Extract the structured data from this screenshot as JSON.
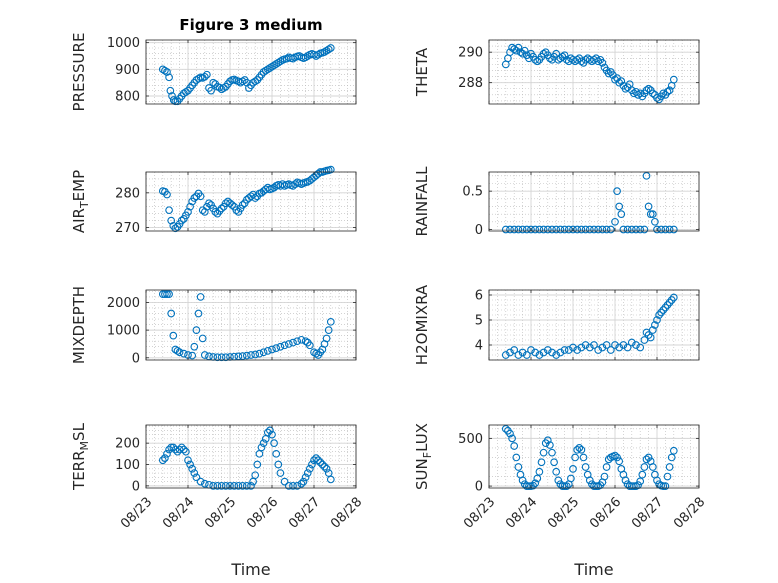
{
  "figure": {
    "title": "Figure 3 medium",
    "marker_color": "#0072BD"
  },
  "chart_data": [
    {
      "type": "scatter",
      "ylabel": "PRESSURE",
      "ylim": [
        770,
        1010
      ],
      "yticks": [
        800,
        900,
        1000
      ],
      "xlim": [
        0,
        5
      ],
      "grid": true,
      "minor_grid": true,
      "x": [
        0.4,
        0.45,
        0.5,
        0.55,
        0.58,
        0.62,
        0.66,
        0.7,
        0.75,
        0.8,
        0.85,
        0.9,
        0.95,
        1.0,
        1.05,
        1.1,
        1.15,
        1.2,
        1.25,
        1.3,
        1.35,
        1.4,
        1.45,
        1.5,
        1.55,
        1.6,
        1.65,
        1.7,
        1.75,
        1.8,
        1.85,
        1.9,
        1.95,
        2.0,
        2.05,
        2.1,
        2.15,
        2.2,
        2.25,
        2.3,
        2.35,
        2.4,
        2.45,
        2.5,
        2.55,
        2.6,
        2.65,
        2.7,
        2.75,
        2.8,
        2.85,
        2.9,
        2.95,
        3.0,
        3.05,
        3.1,
        3.15,
        3.2,
        3.25,
        3.3,
        3.35,
        3.4,
        3.45,
        3.5,
        3.55,
        3.6,
        3.65,
        3.7,
        3.75,
        3.8,
        3.85,
        3.9,
        3.95,
        4.0,
        4.05,
        4.1,
        4.15,
        4.2,
        4.25,
        4.3,
        4.35,
        4.4
      ],
      "y": [
        900,
        895,
        890,
        870,
        820,
        800,
        785,
        780,
        780,
        790,
        800,
        810,
        815,
        820,
        830,
        840,
        850,
        860,
        865,
        870,
        868,
        872,
        880,
        830,
        820,
        850,
        845,
        835,
        832,
        825,
        830,
        835,
        845,
        855,
        860,
        862,
        858,
        855,
        850,
        855,
        860,
        850,
        830,
        840,
        850,
        855,
        860,
        870,
        880,
        890,
        895,
        900,
        905,
        910,
        915,
        920,
        925,
        930,
        935,
        938,
        940,
        945,
        942,
        940,
        945,
        948,
        950,
        945,
        942,
        945,
        950,
        955,
        958,
        955,
        950,
        955,
        960,
        962,
        965,
        970,
        975,
        980
      ]
    },
    {
      "type": "scatter",
      "ylabel": "THETA",
      "ylim": [
        286.6,
        290.8
      ],
      "yticks": [
        288,
        290
      ],
      "xlim": [
        0,
        5
      ],
      "grid": true,
      "minor_grid": true,
      "x": [
        0.4,
        0.45,
        0.5,
        0.55,
        0.6,
        0.65,
        0.7,
        0.75,
        0.8,
        0.85,
        0.9,
        0.95,
        1.0,
        1.05,
        1.1,
        1.15,
        1.2,
        1.25,
        1.3,
        1.35,
        1.4,
        1.45,
        1.5,
        1.55,
        1.6,
        1.65,
        1.7,
        1.75,
        1.8,
        1.85,
        1.9,
        1.95,
        2.0,
        2.05,
        2.1,
        2.15,
        2.2,
        2.25,
        2.3,
        2.35,
        2.4,
        2.45,
        2.5,
        2.55,
        2.6,
        2.65,
        2.7,
        2.75,
        2.8,
        2.85,
        2.9,
        2.95,
        3.0,
        3.05,
        3.1,
        3.15,
        3.2,
        3.25,
        3.3,
        3.35,
        3.4,
        3.45,
        3.5,
        3.55,
        3.6,
        3.65,
        3.7,
        3.75,
        3.8,
        3.85,
        3.9,
        3.95,
        4.0,
        4.05,
        4.1,
        4.15,
        4.2,
        4.25,
        4.3,
        4.35,
        4.4
      ],
      "y": [
        289.2,
        289.6,
        290.0,
        290.3,
        290.2,
        290.1,
        290.3,
        290.0,
        289.9,
        290.1,
        289.8,
        289.6,
        289.9,
        289.7,
        289.5,
        289.4,
        289.5,
        289.7,
        289.9,
        290.0,
        289.8,
        289.6,
        289.5,
        289.7,
        289.9,
        289.5,
        289.6,
        289.7,
        289.8,
        289.5,
        289.4,
        289.6,
        289.5,
        289.4,
        289.5,
        289.6,
        289.4,
        289.3,
        289.5,
        289.6,
        289.5,
        289.4,
        289.5,
        289.6,
        289.4,
        289.5,
        289.3,
        289.0,
        288.8,
        288.6,
        288.7,
        288.5,
        288.2,
        288.3,
        288.0,
        288.1,
        287.8,
        287.6,
        287.7,
        287.9,
        287.5,
        287.3,
        287.4,
        287.2,
        287.3,
        287.1,
        287.3,
        287.5,
        287.6,
        287.5,
        287.3,
        287.2,
        287.0,
        286.9,
        287.1,
        287.3,
        287.2,
        287.4,
        287.5,
        287.8,
        288.2
      ]
    },
    {
      "type": "scatter",
      "ylabel": "AIR_TEMP",
      "ylim": [
        269,
        286
      ],
      "yticks": [
        270,
        280
      ],
      "xlim": [
        0,
        5
      ],
      "grid": true,
      "minor_grid": true,
      "x": [
        0.4,
        0.45,
        0.5,
        0.55,
        0.6,
        0.65,
        0.7,
        0.75,
        0.8,
        0.85,
        0.9,
        0.95,
        1.0,
        1.05,
        1.1,
        1.15,
        1.2,
        1.25,
        1.3,
        1.35,
        1.4,
        1.45,
        1.5,
        1.55,
        1.6,
        1.65,
        1.7,
        1.75,
        1.8,
        1.85,
        1.9,
        1.95,
        2.0,
        2.05,
        2.1,
        2.15,
        2.2,
        2.25,
        2.3,
        2.35,
        2.4,
        2.45,
        2.5,
        2.55,
        2.6,
        2.65,
        2.7,
        2.75,
        2.8,
        2.85,
        2.9,
        2.95,
        3.0,
        3.05,
        3.1,
        3.15,
        3.2,
        3.25,
        3.3,
        3.35,
        3.4,
        3.45,
        3.5,
        3.55,
        3.6,
        3.65,
        3.7,
        3.75,
        3.8,
        3.85,
        3.9,
        3.95,
        4.0,
        4.05,
        4.1,
        4.15,
        4.2,
        4.25,
        4.3,
        4.35,
        4.4
      ],
      "y": [
        280.5,
        280.3,
        279.5,
        275.0,
        272.0,
        270.5,
        269.8,
        270.2,
        271.0,
        272.0,
        272.5,
        273.5,
        274.5,
        276.0,
        277.5,
        278.5,
        279.0,
        279.8,
        279.0,
        275.0,
        274.5,
        276.0,
        277.0,
        276.5,
        275.5,
        274.5,
        274.0,
        274.8,
        275.5,
        276.0,
        277.0,
        277.5,
        277.0,
        276.5,
        276.0,
        275.0,
        274.5,
        275.5,
        276.5,
        277.0,
        278.0,
        278.5,
        279.0,
        279.5,
        278.5,
        279.0,
        279.8,
        280.0,
        280.5,
        281.0,
        281.5,
        281.0,
        281.2,
        281.5,
        282.0,
        282.3,
        282.0,
        282.5,
        282.0,
        282.3,
        282.5,
        282.2,
        282.0,
        282.5,
        283.0,
        282.8,
        282.5,
        282.8,
        283.0,
        283.2,
        283.5,
        284.0,
        284.5,
        285.0,
        285.5,
        286.0,
        286.0,
        286.2,
        286.4,
        286.5,
        286.7
      ]
    },
    {
      "type": "scatter",
      "ylabel": "RAINFALL",
      "ylim": [
        -0.02,
        0.75
      ],
      "yticks": [
        0,
        0.5
      ],
      "xlim": [
        0,
        5
      ],
      "grid": true,
      "minor_grid": true,
      "x": [
        0.4,
        0.5,
        0.6,
        0.7,
        0.8,
        0.9,
        1.0,
        1.1,
        1.2,
        1.3,
        1.4,
        1.5,
        1.6,
        1.7,
        1.8,
        1.9,
        2.0,
        2.1,
        2.2,
        2.3,
        2.4,
        2.5,
        2.6,
        2.7,
        2.8,
        2.9,
        3.0,
        3.05,
        3.1,
        3.15,
        3.2,
        3.3,
        3.4,
        3.5,
        3.6,
        3.7,
        3.75,
        3.8,
        3.85,
        3.9,
        3.95,
        4.0,
        4.1,
        4.2,
        4.3,
        4.4
      ],
      "y": [
        0,
        0,
        0,
        0,
        0,
        0,
        0,
        0,
        0,
        0,
        0,
        0,
        0,
        0,
        0,
        0,
        0,
        0,
        0,
        0,
        0,
        0,
        0,
        0,
        0,
        0,
        0.1,
        0.5,
        0.3,
        0.2,
        0,
        0,
        0,
        0,
        0,
        0,
        0.7,
        0.3,
        0.2,
        0.2,
        0.1,
        0,
        0,
        0,
        0,
        0
      ]
    },
    {
      "type": "scatter",
      "ylabel": "MIXDEPTH",
      "ylim": [
        -80,
        2450
      ],
      "yticks": [
        0,
        1000,
        2000
      ],
      "xlim": [
        0,
        5
      ],
      "grid": true,
      "minor_grid": true,
      "x": [
        0.4,
        0.45,
        0.5,
        0.55,
        0.6,
        0.65,
        0.7,
        0.75,
        0.8,
        0.9,
        1.0,
        1.1,
        1.15,
        1.2,
        1.25,
        1.3,
        1.35,
        1.4,
        1.5,
        1.6,
        1.7,
        1.8,
        1.9,
        2.0,
        2.1,
        2.2,
        2.3,
        2.4,
        2.5,
        2.6,
        2.7,
        2.8,
        2.9,
        3.0,
        3.1,
        3.2,
        3.3,
        3.4,
        3.5,
        3.6,
        3.7,
        3.8,
        3.85,
        3.9,
        4.0,
        4.05,
        4.1,
        4.15,
        4.2,
        4.25,
        4.3,
        4.35,
        4.4
      ],
      "y": [
        2300,
        2300,
        2300,
        2300,
        1600,
        800,
        300,
        250,
        200,
        150,
        100,
        80,
        400,
        1000,
        1600,
        2200,
        700,
        100,
        50,
        30,
        20,
        20,
        20,
        30,
        40,
        50,
        60,
        80,
        100,
        120,
        150,
        200,
        250,
        300,
        350,
        400,
        450,
        500,
        550,
        600,
        650,
        600,
        550,
        450,
        200,
        150,
        100,
        200,
        300,
        500,
        700,
        1000,
        1300
      ]
    },
    {
      "type": "scatter",
      "ylabel": "H2OMIXRA",
      "ylim": [
        3.4,
        6.2
      ],
      "yticks": [
        4,
        5,
        6
      ],
      "xlim": [
        0,
        5
      ],
      "grid": true,
      "minor_grid": true,
      "x": [
        0.4,
        0.5,
        0.6,
        0.7,
        0.8,
        0.9,
        1.0,
        1.1,
        1.2,
        1.3,
        1.4,
        1.5,
        1.6,
        1.7,
        1.8,
        1.9,
        2.0,
        2.1,
        2.2,
        2.3,
        2.4,
        2.5,
        2.6,
        2.7,
        2.8,
        2.9,
        3.0,
        3.1,
        3.2,
        3.3,
        3.4,
        3.5,
        3.6,
        3.7,
        3.75,
        3.8,
        3.85,
        3.9,
        3.95,
        4.0,
        4.05,
        4.1,
        4.15,
        4.2,
        4.25,
        4.3,
        4.35,
        4.4
      ],
      "y": [
        3.6,
        3.7,
        3.8,
        3.6,
        3.7,
        3.6,
        3.8,
        3.7,
        3.6,
        3.7,
        3.8,
        3.7,
        3.6,
        3.7,
        3.8,
        3.8,
        3.9,
        3.8,
        3.9,
        4.0,
        3.9,
        4.0,
        3.8,
        3.9,
        4.0,
        3.8,
        4.0,
        3.9,
        4.0,
        3.9,
        4.1,
        4.0,
        3.9,
        4.2,
        4.5,
        4.4,
        4.3,
        4.6,
        4.8,
        5.0,
        5.2,
        5.3,
        5.4,
        5.5,
        5.6,
        5.7,
        5.8,
        5.9
      ]
    },
    {
      "type": "scatter",
      "ylabel": "TERR_MSL",
      "ylim": [
        -10,
        285
      ],
      "yticks": [
        0,
        100,
        200
      ],
      "xlim": [
        0,
        5
      ],
      "grid": true,
      "minor_grid": true,
      "x": [
        0.4,
        0.45,
        0.5,
        0.55,
        0.6,
        0.65,
        0.7,
        0.75,
        0.8,
        0.85,
        0.9,
        0.95,
        1.0,
        1.05,
        1.1,
        1.15,
        1.2,
        1.3,
        1.4,
        1.5,
        1.6,
        1.7,
        1.8,
        1.9,
        2.0,
        2.1,
        2.2,
        2.3,
        2.4,
        2.5,
        2.55,
        2.6,
        2.65,
        2.7,
        2.75,
        2.8,
        2.85,
        2.9,
        2.95,
        3.0,
        3.05,
        3.1,
        3.15,
        3.2,
        3.3,
        3.4,
        3.5,
        3.6,
        3.7,
        3.75,
        3.8,
        3.85,
        3.9,
        3.95,
        4.0,
        4.05,
        4.1,
        4.15,
        4.2,
        4.25,
        4.3,
        4.35,
        4.4
      ],
      "y": [
        120,
        130,
        150,
        170,
        180,
        180,
        170,
        160,
        170,
        180,
        170,
        160,
        120,
        100,
        80,
        60,
        40,
        20,
        10,
        5,
        0,
        0,
        0,
        0,
        0,
        0,
        0,
        0,
        0,
        0,
        20,
        50,
        100,
        150,
        180,
        200,
        220,
        250,
        260,
        240,
        200,
        150,
        100,
        60,
        20,
        0,
        0,
        0,
        10,
        20,
        40,
        60,
        80,
        100,
        120,
        130,
        120,
        110,
        100,
        90,
        80,
        60,
        30
      ]
    },
    {
      "type": "scatter",
      "ylabel": "SUN_FLUX",
      "ylim": [
        -20,
        640
      ],
      "yticks": [
        0,
        500
      ],
      "xlim": [
        0,
        5
      ],
      "grid": true,
      "minor_grid": true,
      "x": [
        0.4,
        0.45,
        0.5,
        0.55,
        0.6,
        0.65,
        0.7,
        0.75,
        0.8,
        0.85,
        0.9,
        0.95,
        1.0,
        1.05,
        1.1,
        1.15,
        1.2,
        1.25,
        1.3,
        1.35,
        1.4,
        1.45,
        1.5,
        1.55,
        1.6,
        1.65,
        1.7,
        1.75,
        1.8,
        1.85,
        1.9,
        1.95,
        2.0,
        2.05,
        2.1,
        2.15,
        2.2,
        2.25,
        2.3,
        2.35,
        2.4,
        2.45,
        2.5,
        2.55,
        2.6,
        2.65,
        2.7,
        2.75,
        2.8,
        2.85,
        2.9,
        2.95,
        3.0,
        3.05,
        3.1,
        3.15,
        3.2,
        3.25,
        3.3,
        3.35,
        3.4,
        3.45,
        3.5,
        3.55,
        3.6,
        3.65,
        3.7,
        3.75,
        3.8,
        3.85,
        3.9,
        3.95,
        4.0,
        4.05,
        4.1,
        4.15,
        4.2,
        4.25,
        4.3,
        4.35,
        4.4
      ],
      "y": [
        600,
        580,
        550,
        500,
        420,
        300,
        200,
        120,
        60,
        20,
        0,
        0,
        0,
        5,
        30,
        80,
        150,
        250,
        350,
        450,
        480,
        430,
        350,
        250,
        150,
        60,
        20,
        0,
        0,
        0,
        20,
        80,
        180,
        300,
        380,
        400,
        380,
        300,
        200,
        120,
        60,
        20,
        0,
        0,
        0,
        10,
        40,
        100,
        200,
        280,
        300,
        310,
        320,
        300,
        260,
        180,
        120,
        60,
        20,
        0,
        0,
        0,
        0,
        10,
        50,
        120,
        200,
        280,
        300,
        260,
        200,
        120,
        60,
        20,
        5,
        0,
        0,
        100,
        200,
        300,
        370
      ]
    }
  ],
  "shared_x": {
    "label": "Time",
    "tick_labels": [
      "08/23",
      "08/24",
      "08/25",
      "08/26",
      "08/27",
      "08/28"
    ],
    "tick_values": [
      0,
      1,
      2,
      3,
      4,
      5
    ]
  }
}
